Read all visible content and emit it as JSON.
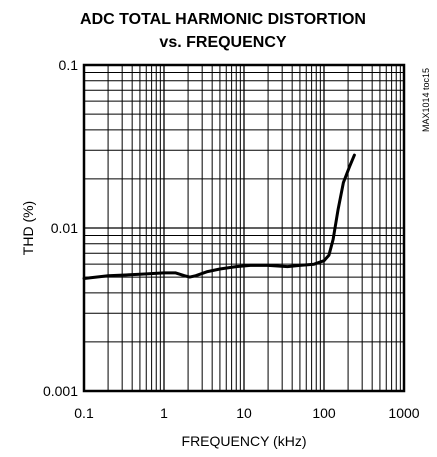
{
  "chart_data": {
    "type": "line",
    "title_line1": "ADC TOTAL HARMONIC DISTORTION",
    "title_line2": "vs. FREQUENCY",
    "xlabel": "FREQUENCY (kHz)",
    "ylabel": "THD (%)",
    "annotation": "MAX1014 toc15",
    "x_scale": "log",
    "y_scale": "log",
    "xlim": [
      0.1,
      1000
    ],
    "ylim": [
      0.001,
      0.1
    ],
    "x_ticks": [
      0.1,
      1,
      10,
      100,
      1000
    ],
    "x_tick_labels": [
      "0.1",
      "1",
      "10",
      "100",
      "1000"
    ],
    "y_ticks": [
      0.001,
      0.01,
      0.1
    ],
    "y_tick_labels": [
      "0.001",
      "0.01",
      "0.1"
    ],
    "grid": true,
    "series": [
      {
        "x": [
          0.1,
          0.2,
          0.5,
          1.0,
          1.4,
          1.8,
          2.1,
          2.5,
          3.5,
          5,
          8,
          12,
          20,
          35,
          50,
          75,
          100,
          115,
          130,
          150,
          175,
          210,
          240
        ],
        "y": [
          0.0049,
          0.0051,
          0.0052,
          0.0053,
          0.0053,
          0.0051,
          0.005,
          0.0051,
          0.0054,
          0.0056,
          0.0058,
          0.0059,
          0.0059,
          0.0058,
          0.0059,
          0.006,
          0.0063,
          0.0068,
          0.0085,
          0.013,
          0.019,
          0.024,
          0.028
        ]
      }
    ],
    "colors": {
      "line": "#000000",
      "grid": "#000000",
      "background": "#ffffff"
    }
  }
}
